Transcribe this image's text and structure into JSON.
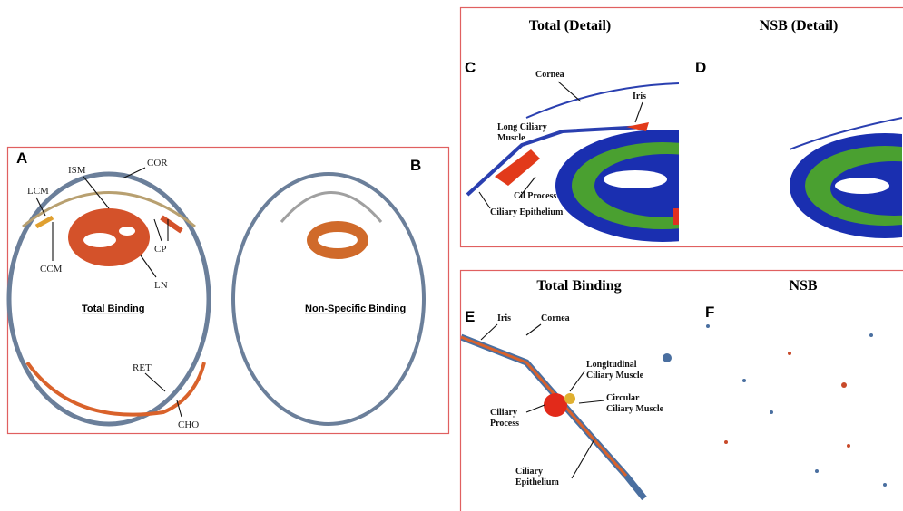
{
  "panel_ab": {
    "label_a": "A",
    "label_b": "B",
    "caption_a": "Total Binding",
    "caption_b": "Non-Specific Binding",
    "structures": [
      "COR",
      "ISM",
      "LCM",
      "CCM",
      "CP",
      "LN",
      "RET",
      "CHO"
    ]
  },
  "panel_cd": {
    "title_c": "Total (Detail)",
    "title_d": "NSB (Detail)",
    "label_c": "C",
    "label_d": "D",
    "annotations": [
      [
        "Cornea"
      ],
      [
        "Iris"
      ],
      [
        "Long Ciliary",
        "Muscle"
      ],
      [
        "Cil Process"
      ],
      [
        "Ciliary Epithelium"
      ]
    ]
  },
  "panel_ef": {
    "title_e": "Total Binding",
    "title_f": "NSB",
    "label_e": "E",
    "label_f": "F",
    "annotations": [
      [
        "Iris"
      ],
      [
        "Cornea"
      ],
      [
        "Longitudinal",
        "Ciliary Muscle"
      ],
      [
        "Ciliary",
        "Process"
      ],
      [
        "Circular",
        "Ciliary Muscle"
      ],
      [
        "Ciliary",
        "Epithelium"
      ]
    ]
  }
}
